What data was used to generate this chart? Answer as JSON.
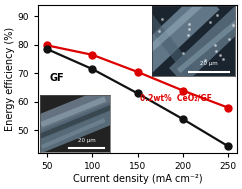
{
  "x": [
    50,
    100,
    150,
    200,
    250
  ],
  "y_red": [
    79.8,
    76.5,
    70.5,
    64.0,
    58.0
  ],
  "y_black": [
    78.5,
    71.5,
    63.0,
    54.0,
    44.5
  ],
  "red_color": "#dd0000",
  "black_color": "#111111",
  "xlabel": "Current density (mA cm⁻²)",
  "ylabel": "Energy efficiency (%)",
  "xlim": [
    40,
    260
  ],
  "ylim": [
    42,
    94
  ],
  "yticks": [
    50,
    60,
    70,
    80,
    90
  ],
  "xticks": [
    50,
    100,
    150,
    200,
    250
  ],
  "red_label_1": "0.2wt%  CeO",
  "red_label_2": "/GF",
  "black_label": "GF",
  "background_color": "#ffffff",
  "marker_size": 5,
  "linewidth": 1.6,
  "inset1_bg": "#222222",
  "inset2_bg": "#1a2530",
  "fiber_color1": "#708090",
  "fiber_color2": "#8090a0"
}
